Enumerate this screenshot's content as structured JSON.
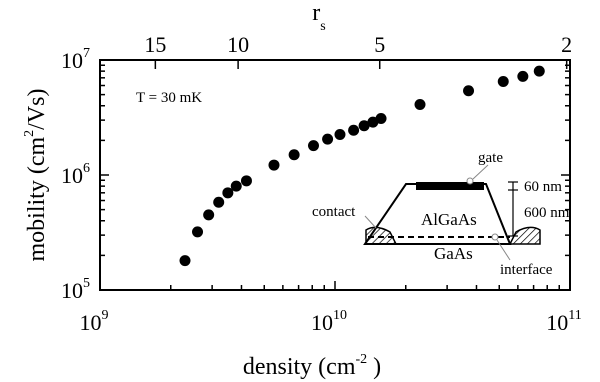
{
  "chart_data": {
    "type": "scatter",
    "xlabel": "density (cm",
    "xlabel_unit_sup": "-2",
    "xlabel_suffix": " )",
    "ylabel": "mobility (cm",
    "ylabel_unit_sup": "2",
    "ylabel_suffix": "/Vs)",
    "x_scale": "log",
    "y_scale": "log",
    "xlim": [
      1000000000.0,
      100000000000.0
    ],
    "ylim": [
      100000.0,
      10000000.0
    ],
    "x_ticks": [
      {
        "value": 1000000000.0,
        "base": "10",
        "exp": "9"
      },
      {
        "value": 10000000000.0,
        "base": "10",
        "exp": "10"
      },
      {
        "value": 100000000000.0,
        "base": "10",
        "exp": "11"
      }
    ],
    "y_ticks": [
      {
        "value": 100000.0,
        "base": "10",
        "exp": "5"
      },
      {
        "value": 1000000.0,
        "base": "10",
        "exp": "6"
      },
      {
        "value": 10000000.0,
        "base": "10",
        "exp": "7"
      }
    ],
    "top_axis": {
      "label": "r",
      "label_sub": "s",
      "ticks": [
        {
          "density": 1720000000.0,
          "label": "15"
        },
        {
          "density": 3870000000.0,
          "label": "10"
        },
        {
          "density": 15500000000.0,
          "label": "5"
        },
        {
          "density": 96800000000.0,
          "label": "2"
        }
      ]
    },
    "annotation": "T = 30 mK",
    "grid": false,
    "x": [
      2300000000.0,
      2600000000.0,
      2900000000.0,
      3200000000.0,
      3500000000.0,
      3800000000.0,
      4200000000.0,
      5500000000.0,
      6700000000.0,
      8100000000.0,
      9300000000.0,
      10500000000.0,
      12000000000.0,
      13300000000.0,
      14500000000.0,
      15700000000.0,
      23000000000.0,
      37000000000.0,
      52000000000.0,
      63000000000.0,
      74000000000.0
    ],
    "y": [
      180000.0,
      320000.0,
      450000.0,
      580000.0,
      700000.0,
      800000.0,
      890000.0,
      1220000.0,
      1500000.0,
      1800000.0,
      2050000.0,
      2250000.0,
      2450000.0,
      2680000.0,
      2880000.0,
      3100000.0,
      4100000.0,
      5400000.0,
      6500000.0,
      7200000.0,
      8000000.0
    ]
  },
  "inset": {
    "gate": "gate",
    "contact": "contact",
    "algaas": "AlGaAs",
    "gaas": "GaAs",
    "interface": "interface",
    "dim_top": "60 nm",
    "dim_bottom": "600 nm"
  }
}
